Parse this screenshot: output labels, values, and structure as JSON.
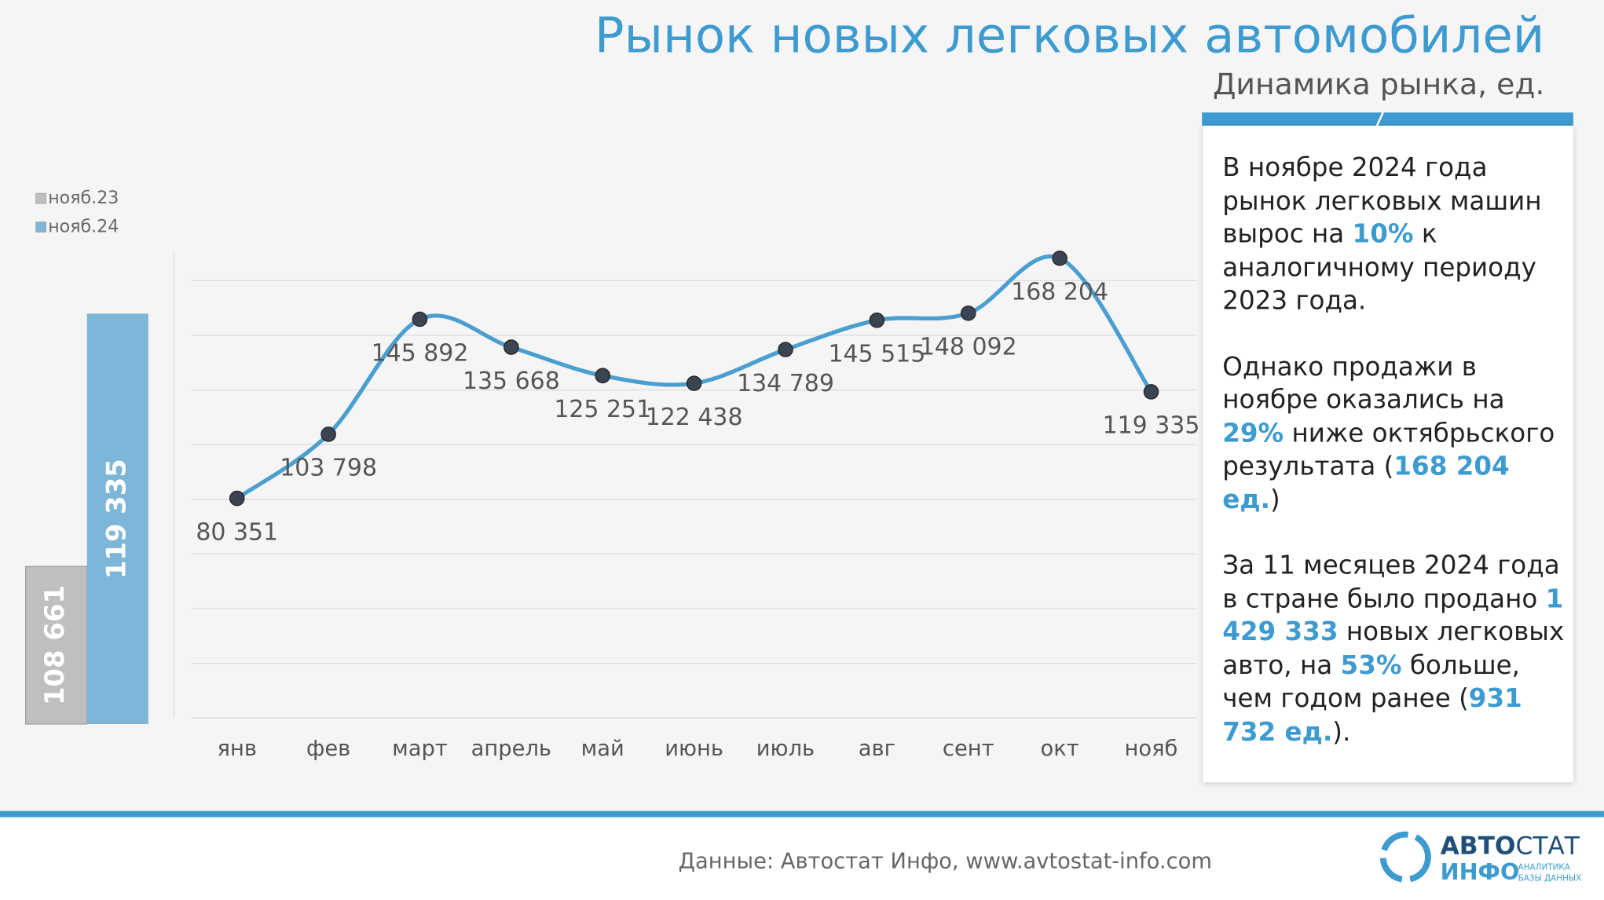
{
  "title": "Рынок новых легковых автомобилей",
  "subtitle": "Динамика рынка, ед.",
  "chart_data": [
    {
      "type": "bar",
      "categories": [
        null
      ],
      "series": [
        {
          "name": "нояб.23",
          "color": "#bfbfbf",
          "values": [
            108661
          ],
          "value_labels": [
            "108 661"
          ]
        },
        {
          "name": "нояб.24",
          "color": "#7db6d8",
          "values": [
            119335
          ],
          "value_labels": [
            "119 335"
          ]
        }
      ],
      "ylim": [
        102000,
        122000
      ]
    },
    {
      "type": "line",
      "categories": [
        "янв",
        "фев",
        "март",
        "апрель",
        "май",
        "июнь",
        "июль",
        "авг",
        "сент",
        "окт",
        "нояб"
      ],
      "values": [
        80351,
        103798,
        145892,
        135668,
        125251,
        122438,
        134789,
        145515,
        148092,
        168204,
        119335
      ],
      "value_labels": [
        "80 351",
        "103 798",
        "145 892",
        "135 668",
        "125 251",
        "122 438",
        "134 789",
        "145 515",
        "148 092",
        "168 204",
        "119 335"
      ],
      "color": "#4a9fd0",
      "marker_color": "#3b4452",
      "ylim": [
        0,
        180000
      ],
      "yticks": [
        0,
        20000,
        40000,
        60000,
        80000,
        100000,
        120000,
        140000,
        160000
      ],
      "grid": true
    }
  ],
  "panel": {
    "paragraphs": [
      [
        {
          "text": "В ноябре 2024 года рынок легковых машин вырос на "
        },
        {
          "text": "10%",
          "highlight": true
        },
        {
          "text": " к аналогичному периоду 2023 года."
        }
      ],
      [
        {
          "text": "Однако продажи в ноябре оказались на "
        },
        {
          "text": "29%",
          "highlight": true
        },
        {
          "text": " ниже октябрьского результата ("
        },
        {
          "text": "168 204 ед.",
          "highlight": true
        },
        {
          "text": ")"
        }
      ],
      [
        {
          "text": "За 11 месяцев 2024 года в стране было продано "
        },
        {
          "text": "1 429 333",
          "highlight": true
        },
        {
          "text": " новых легковых авто, на "
        },
        {
          "text": "53%",
          "highlight": true
        },
        {
          "text": " больше, чем годом ранее ("
        },
        {
          "text": "931 732 ед.",
          "highlight": true
        },
        {
          "text": ")."
        }
      ]
    ]
  },
  "footer": {
    "source": "Данные: Автостат Инфо, www.avtostat-info.com"
  },
  "logo": {
    "name_bold": "АВТО",
    "name_rest": "СТАТ",
    "sub": "ИНФО",
    "tagline": [
      "АНАЛИТИКА",
      "БАЗЫ ДАННЫХ"
    ]
  }
}
